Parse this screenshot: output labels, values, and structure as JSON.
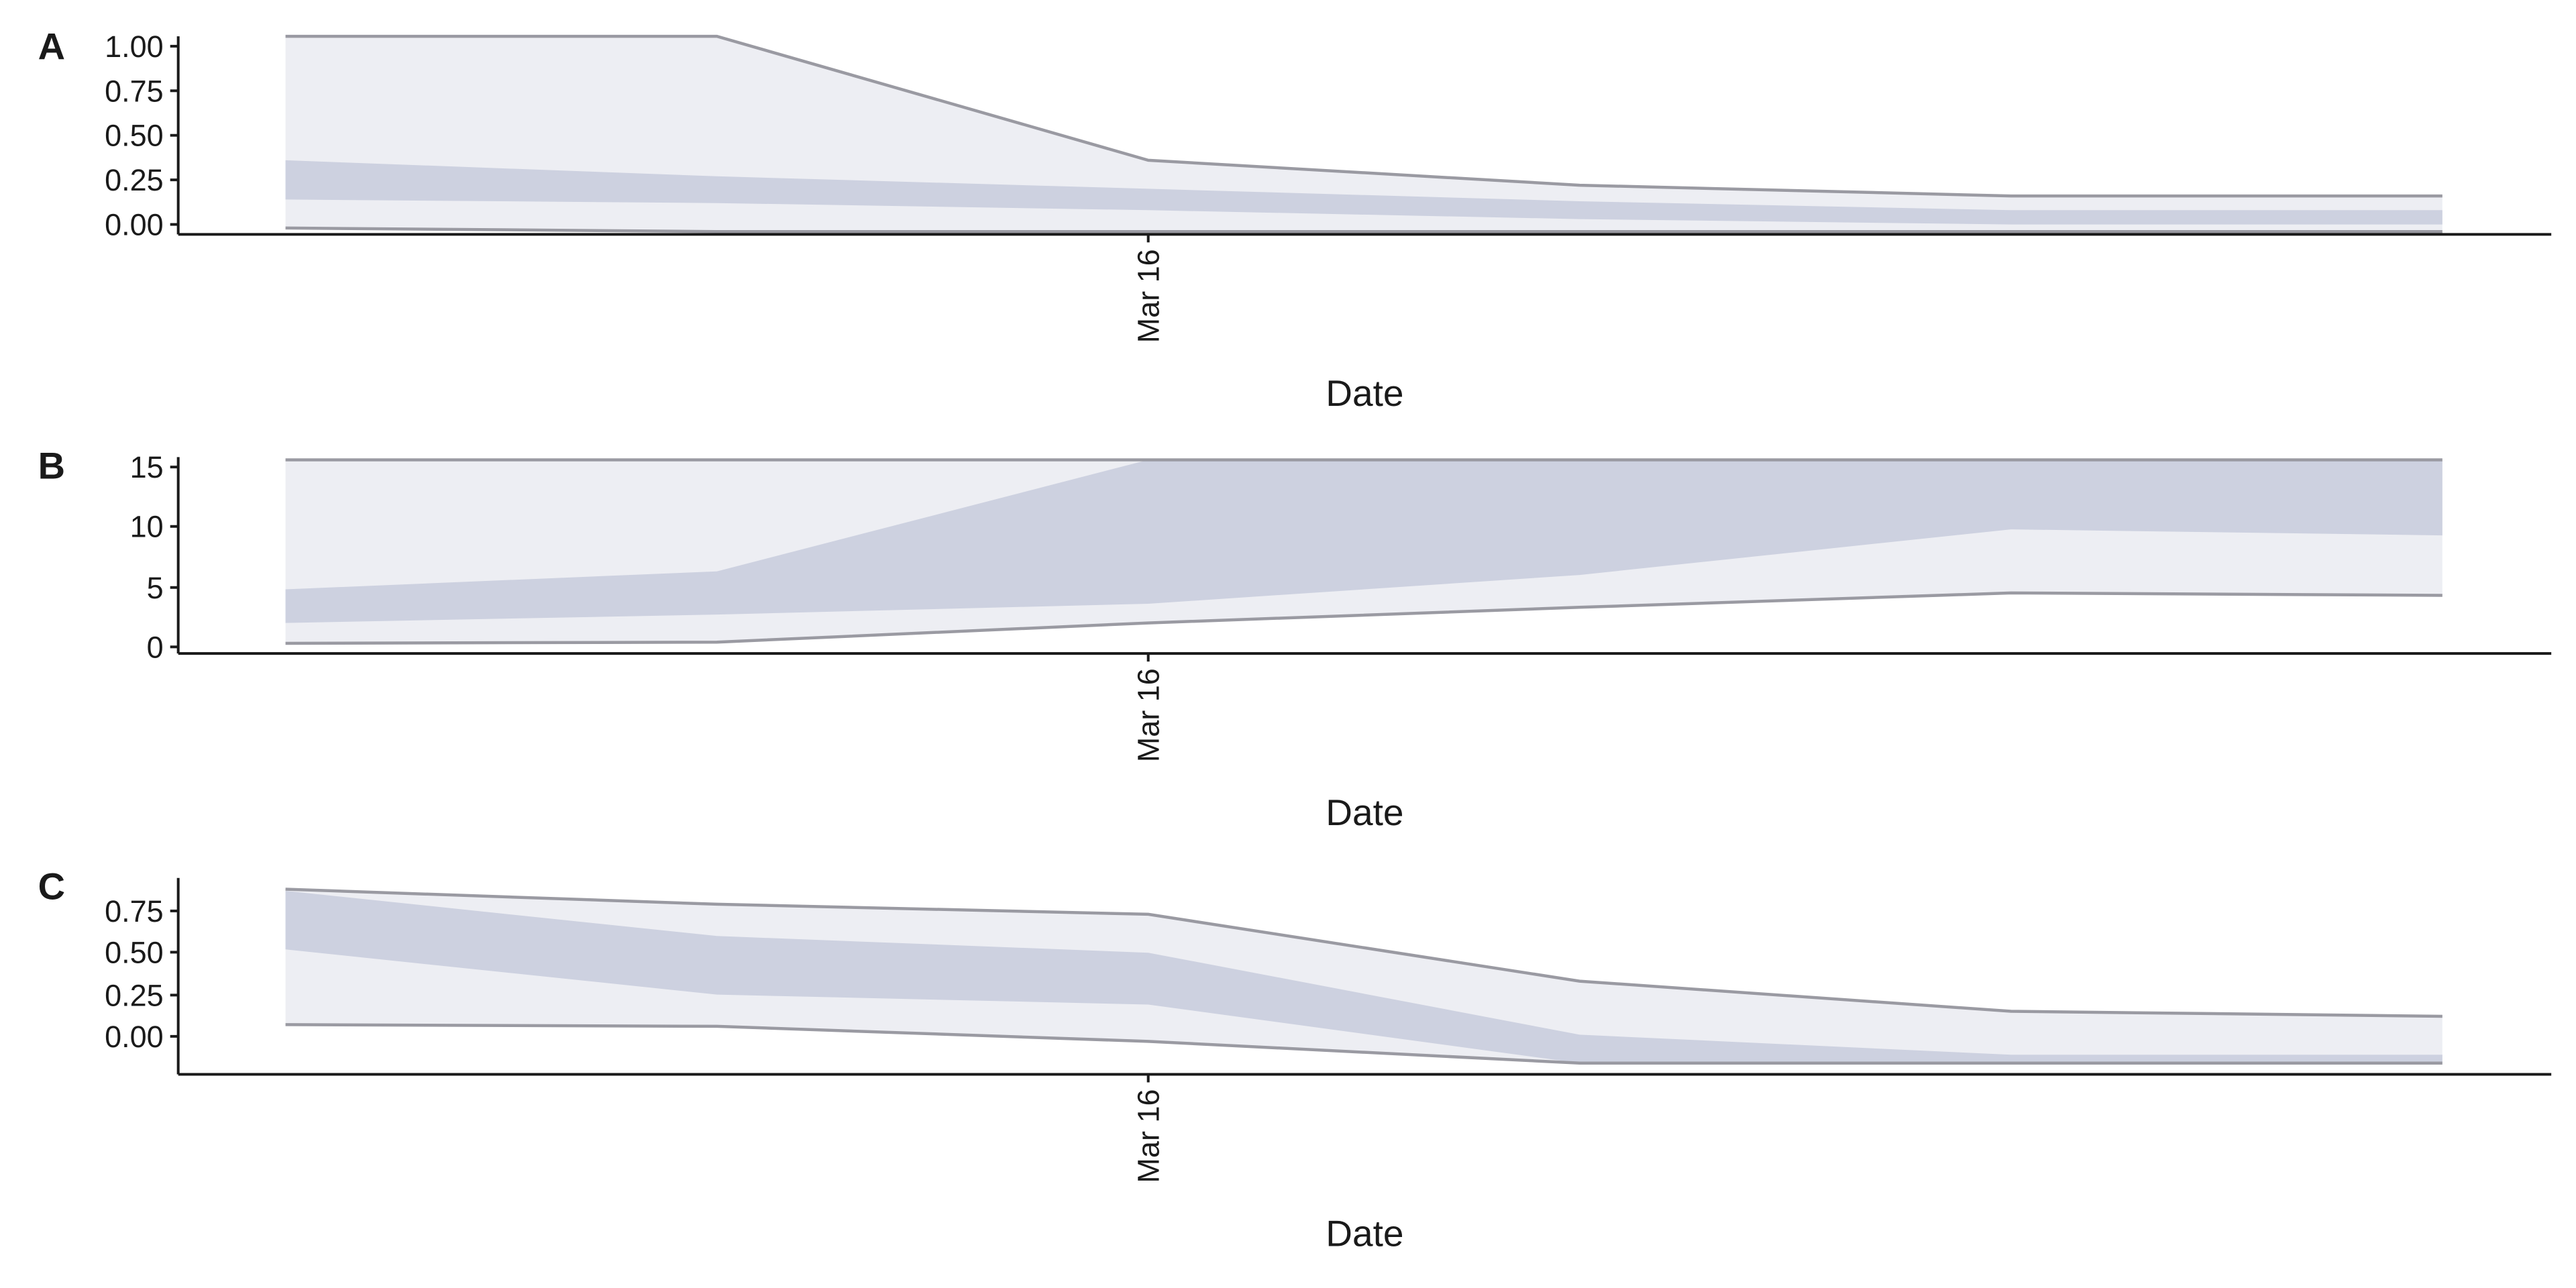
{
  "chart_data": [
    {
      "panel": "A",
      "type": "area",
      "xlabel": "Date",
      "x_ticks": [
        "Mar 16"
      ],
      "x": [
        "2020-03-14",
        "2020-03-15",
        "2020-03-16",
        "2020-03-17",
        "2020-03-18",
        "2020-03-19"
      ],
      "y_ticks": [
        "0.00",
        "0.25",
        "0.50",
        "0.75",
        "1.00"
      ],
      "ylim": [
        -0.04,
        1.06
      ],
      "outer_upper": [
        1.06,
        1.06,
        0.36,
        0.22,
        0.16,
        0.16
      ],
      "inner_upper": [
        0.36,
        0.27,
        0.2,
        0.13,
        0.08,
        0.08
      ],
      "inner_lower": [
        0.14,
        0.12,
        0.08,
        0.03,
        0.0,
        0.0
      ],
      "outer_lower": [
        -0.02,
        -0.04,
        -0.04,
        -0.04,
        -0.04,
        -0.04
      ]
    },
    {
      "panel": "B",
      "type": "area",
      "xlabel": "Date",
      "x_ticks": [
        "Mar 16"
      ],
      "x": [
        "2020-03-14",
        "2020-03-15",
        "2020-03-16",
        "2020-03-17",
        "2020-03-18",
        "2020-03-19"
      ],
      "y_ticks": [
        "0",
        "5",
        "10",
        "15"
      ],
      "ylim": [
        -0.5,
        16
      ],
      "outer_upper": [
        15.6,
        15.6,
        15.6,
        15.6,
        15.6,
        15.6
      ],
      "inner_upper": [
        4.8,
        6.3,
        15.6,
        15.6,
        15.6,
        15.6
      ],
      "inner_lower": [
        2.0,
        2.7,
        3.6,
        6.0,
        9.8,
        9.3
      ],
      "outer_lower": [
        0.3,
        0.4,
        2.0,
        3.3,
        4.5,
        4.3
      ]
    },
    {
      "panel": "C",
      "type": "area",
      "xlabel": "Date",
      "x_ticks": [
        "Mar 16"
      ],
      "x": [
        "2020-03-14",
        "2020-03-15",
        "2020-03-16",
        "2020-03-17",
        "2020-03-18",
        "2020-03-19"
      ],
      "y_ticks": [
        "0.00",
        "0.25",
        "0.50",
        "0.75"
      ],
      "ylim": [
        -0.22,
        0.95
      ],
      "outer_upper": [
        0.88,
        0.79,
        0.73,
        0.33,
        0.15,
        0.12
      ],
      "inner_upper": [
        0.87,
        0.6,
        0.5,
        0.01,
        -0.11,
        -0.11
      ],
      "inner_lower": [
        0.52,
        0.25,
        0.19,
        -0.16,
        -0.16,
        -0.16
      ],
      "outer_lower": [
        0.07,
        0.06,
        -0.03,
        -0.16,
        -0.16,
        -0.16
      ]
    }
  ],
  "colors": {
    "outer_band": "#edeef3",
    "inner_band": "#cdd1e0",
    "bound_line": "#9a9aa2",
    "axis": "#1a1a1a"
  }
}
